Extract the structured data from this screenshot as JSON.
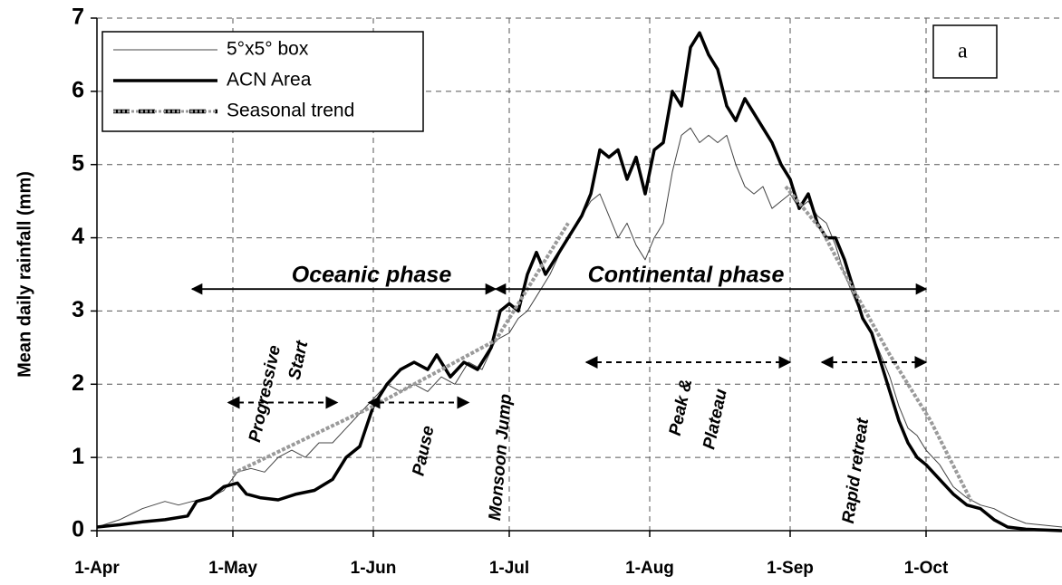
{
  "chart_data": {
    "type": "line",
    "y_label": "Mean daily rainfall (mm)",
    "panel_label": "a",
    "xlim": [
      0,
      213
    ],
    "xticks": [
      {
        "value": 0,
        "label": "1-Apr"
      },
      {
        "value": 30,
        "label": "1-May"
      },
      {
        "value": 61,
        "label": "1-Jun"
      },
      {
        "value": 91,
        "label": "1-Jul"
      },
      {
        "value": 122,
        "label": "1-Aug"
      },
      {
        "value": 153,
        "label": "1-Sep"
      },
      {
        "value": 183,
        "label": "1-Oct"
      }
    ],
    "ylim": [
      0,
      7
    ],
    "yticks": [
      0,
      1,
      2,
      3,
      4,
      5,
      6,
      7
    ],
    "grid": true,
    "legend": "upper left",
    "series": [
      {
        "name": "5°x5° box",
        "color": "#444444",
        "width": 1,
        "dash": false,
        "x": [
          0,
          5,
          10,
          15,
          18,
          21,
          25,
          28,
          31,
          34,
          37,
          40,
          43,
          46,
          49,
          52,
          55,
          58,
          61,
          64,
          67,
          70,
          73,
          76,
          79,
          82,
          85,
          88,
          91,
          93,
          95,
          97,
          100,
          103,
          106,
          109,
          111,
          113,
          115,
          117,
          119,
          121,
          123,
          125,
          127,
          129,
          131,
          133,
          135,
          137,
          139,
          141,
          143,
          145,
          147,
          149,
          151,
          153,
          155,
          157,
          159,
          161,
          163,
          165,
          167,
          169,
          171,
          173,
          175,
          177,
          179,
          181,
          183,
          186,
          189,
          192,
          195,
          198,
          201,
          205,
          213
        ],
        "values": [
          0.05,
          0.15,
          0.3,
          0.4,
          0.35,
          0.4,
          0.45,
          0.55,
          0.8,
          0.85,
          0.8,
          1.0,
          1.1,
          1.0,
          1.2,
          1.2,
          1.4,
          1.6,
          1.8,
          2.0,
          1.9,
          2.0,
          1.9,
          2.1,
          2.0,
          2.3,
          2.2,
          2.6,
          2.7,
          2.9,
          3.0,
          3.2,
          3.5,
          3.9,
          4.2,
          4.5,
          4.6,
          4.3,
          4.0,
          4.2,
          3.9,
          3.7,
          4.0,
          4.2,
          4.9,
          5.4,
          5.5,
          5.3,
          5.4,
          5.3,
          5.4,
          5.0,
          4.7,
          4.6,
          4.7,
          4.4,
          4.5,
          4.6,
          4.4,
          4.5,
          4.3,
          4.2,
          3.9,
          3.5,
          3.2,
          2.9,
          2.7,
          2.4,
          2.1,
          1.7,
          1.4,
          1.3,
          1.1,
          0.9,
          0.6,
          0.45,
          0.35,
          0.3,
          0.2,
          0.1,
          0.05
        ]
      },
      {
        "name": "ACN Area",
        "color": "#000000",
        "width": 3.5,
        "dash": false,
        "x": [
          0,
          5,
          10,
          15,
          20,
          22,
          25,
          28,
          31,
          33,
          36,
          40,
          44,
          48,
          52,
          55,
          58,
          61,
          64,
          67,
          70,
          73,
          75,
          78,
          81,
          84,
          87,
          89,
          91,
          93,
          95,
          97,
          99,
          101,
          104,
          107,
          109,
          111,
          113,
          115,
          117,
          119,
          121,
          123,
          125,
          127,
          129,
          131,
          133,
          135,
          137,
          139,
          141,
          143,
          145,
          147,
          149,
          151,
          153,
          155,
          157,
          159,
          161,
          163,
          165,
          167,
          169,
          171,
          173,
          175,
          177,
          179,
          181,
          183,
          186,
          189,
          192,
          195,
          198,
          201,
          205,
          213
        ],
        "values": [
          0.05,
          0.08,
          0.12,
          0.15,
          0.2,
          0.4,
          0.45,
          0.6,
          0.65,
          0.5,
          0.45,
          0.42,
          0.5,
          0.55,
          0.7,
          1.0,
          1.15,
          1.7,
          2.0,
          2.2,
          2.3,
          2.2,
          2.4,
          2.1,
          2.3,
          2.2,
          2.5,
          3.0,
          3.1,
          3.0,
          3.5,
          3.8,
          3.5,
          3.7,
          4.0,
          4.3,
          4.6,
          5.2,
          5.1,
          5.2,
          4.8,
          5.1,
          4.6,
          5.2,
          5.3,
          6.0,
          5.8,
          6.6,
          6.8,
          6.5,
          6.3,
          5.8,
          5.6,
          5.9,
          5.7,
          5.5,
          5.3,
          5.0,
          4.8,
          4.4,
          4.6,
          4.2,
          4.0,
          4.0,
          3.7,
          3.3,
          2.9,
          2.7,
          2.3,
          1.9,
          1.5,
          1.2,
          1.0,
          0.9,
          0.7,
          0.5,
          0.35,
          0.3,
          0.15,
          0.05,
          0.02,
          0.0
        ]
      },
      {
        "name": "Seasonal trend",
        "color": "#9a9a9a",
        "width": 4,
        "dash": true,
        "x": [
          30,
          61,
          88,
          95,
          104,
          null,
          152,
          160,
          166,
          175,
          184,
          193
        ],
        "values": [
          0.78,
          1.7,
          2.6,
          3.3,
          4.2,
          null,
          4.7,
          4.1,
          3.4,
          2.4,
          1.5,
          0.4
        ]
      }
    ],
    "annotations": [
      "Oceanic phase",
      "Continental phase",
      "Progressive",
      "Start",
      "Pause",
      "Monsoon Jump",
      "Peak &",
      "Plateau",
      "Rapid retreat"
    ]
  }
}
